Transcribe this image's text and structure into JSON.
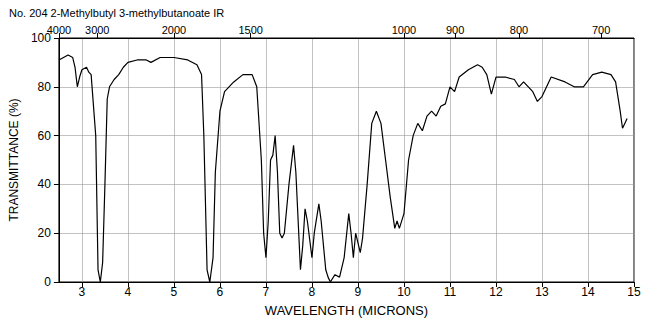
{
  "chart_data": {
    "type": "line",
    "title": "No. 204 2-Methylbutyl 3-methylbutanoate IR",
    "x_label": "WAVELENGTH (MICRONS)",
    "y_label": "TRANSMITTANCE (%)",
    "x": [
      2.5,
      2.6,
      2.7,
      2.8,
      2.85,
      2.9,
      2.95,
      3.0,
      3.1,
      3.15,
      3.2,
      3.3,
      3.35,
      3.4,
      3.45,
      3.5,
      3.55,
      3.6,
      3.7,
      3.8,
      3.9,
      4.0,
      4.2,
      4.4,
      4.5,
      4.7,
      5.0,
      5.3,
      5.5,
      5.6,
      5.65,
      5.72,
      5.78,
      5.85,
      5.9,
      6.0,
      6.1,
      6.3,
      6.5,
      6.7,
      6.8,
      6.9,
      6.95,
      7.0,
      7.05,
      7.1,
      7.15,
      7.2,
      7.25,
      7.3,
      7.35,
      7.4,
      7.5,
      7.6,
      7.65,
      7.7,
      7.75,
      7.8,
      7.85,
      7.9,
      8.0,
      8.05,
      8.15,
      8.2,
      8.3,
      8.35,
      8.4,
      8.5,
      8.6,
      8.7,
      8.8,
      8.85,
      8.9,
      8.95,
      9.05,
      9.1,
      9.2,
      9.3,
      9.4,
      9.5,
      9.6,
      9.7,
      9.8,
      9.85,
      9.9,
      10.0,
      10.1,
      10.2,
      10.3,
      10.4,
      10.5,
      10.6,
      10.7,
      10.8,
      10.9,
      11.0,
      11.1,
      11.2,
      11.4,
      11.6,
      11.7,
      11.8,
      11.9,
      12.0,
      12.2,
      12.4,
      12.5,
      12.6,
      12.8,
      12.9,
      13.0,
      13.2,
      13.5,
      13.7,
      13.9,
      14.1,
      14.3,
      14.5,
      14.6,
      14.7,
      14.75,
      14.8,
      14.85
    ],
    "values": [
      91,
      92,
      93,
      92,
      88,
      80,
      84,
      87,
      88,
      86,
      85,
      60,
      5,
      0,
      8,
      40,
      75,
      80,
      83,
      85,
      88,
      90,
      91,
      91,
      90,
      92,
      92,
      91,
      89,
      85,
      60,
      5,
      0,
      10,
      45,
      70,
      78,
      82,
      85,
      85,
      80,
      50,
      20,
      10,
      25,
      50,
      52,
      60,
      45,
      20,
      18,
      20,
      40,
      56,
      45,
      25,
      5,
      15,
      30,
      25,
      10,
      20,
      32,
      25,
      5,
      2,
      0,
      3,
      2,
      10,
      28,
      20,
      10,
      20,
      12,
      18,
      40,
      65,
      70,
      65,
      50,
      35,
      22,
      25,
      22,
      28,
      50,
      60,
      65,
      62,
      68,
      70,
      68,
      72,
      73,
      80,
      78,
      84,
      87,
      89,
      88,
      85,
      77,
      84,
      84,
      83,
      80,
      82,
      78,
      74,
      76,
      84,
      82,
      80,
      80,
      85,
      86,
      85,
      82,
      70,
      63,
      65,
      67
    ],
    "color": "#000000",
    "xlim": [
      2.5,
      15
    ],
    "xticks": [
      3,
      4,
      5,
      6,
      7,
      8,
      9,
      10,
      11,
      12,
      13,
      14,
      15
    ],
    "x2ticks": [
      {
        "value": 2.5,
        "label": "4000"
      },
      {
        "value": 3.333,
        "label": "3000"
      },
      {
        "value": 5,
        "label": "2000"
      },
      {
        "value": 6.667,
        "label": "1500"
      },
      {
        "value": 10,
        "label": "1000"
      },
      {
        "value": 11.111,
        "label": "900"
      },
      {
        "value": 12.5,
        "label": "800"
      },
      {
        "value": 14.286,
        "label": "700"
      }
    ],
    "ylim": [
      0,
      100
    ],
    "yticks": [
      0,
      20,
      40,
      60,
      80,
      100
    ],
    "grid": true
  }
}
